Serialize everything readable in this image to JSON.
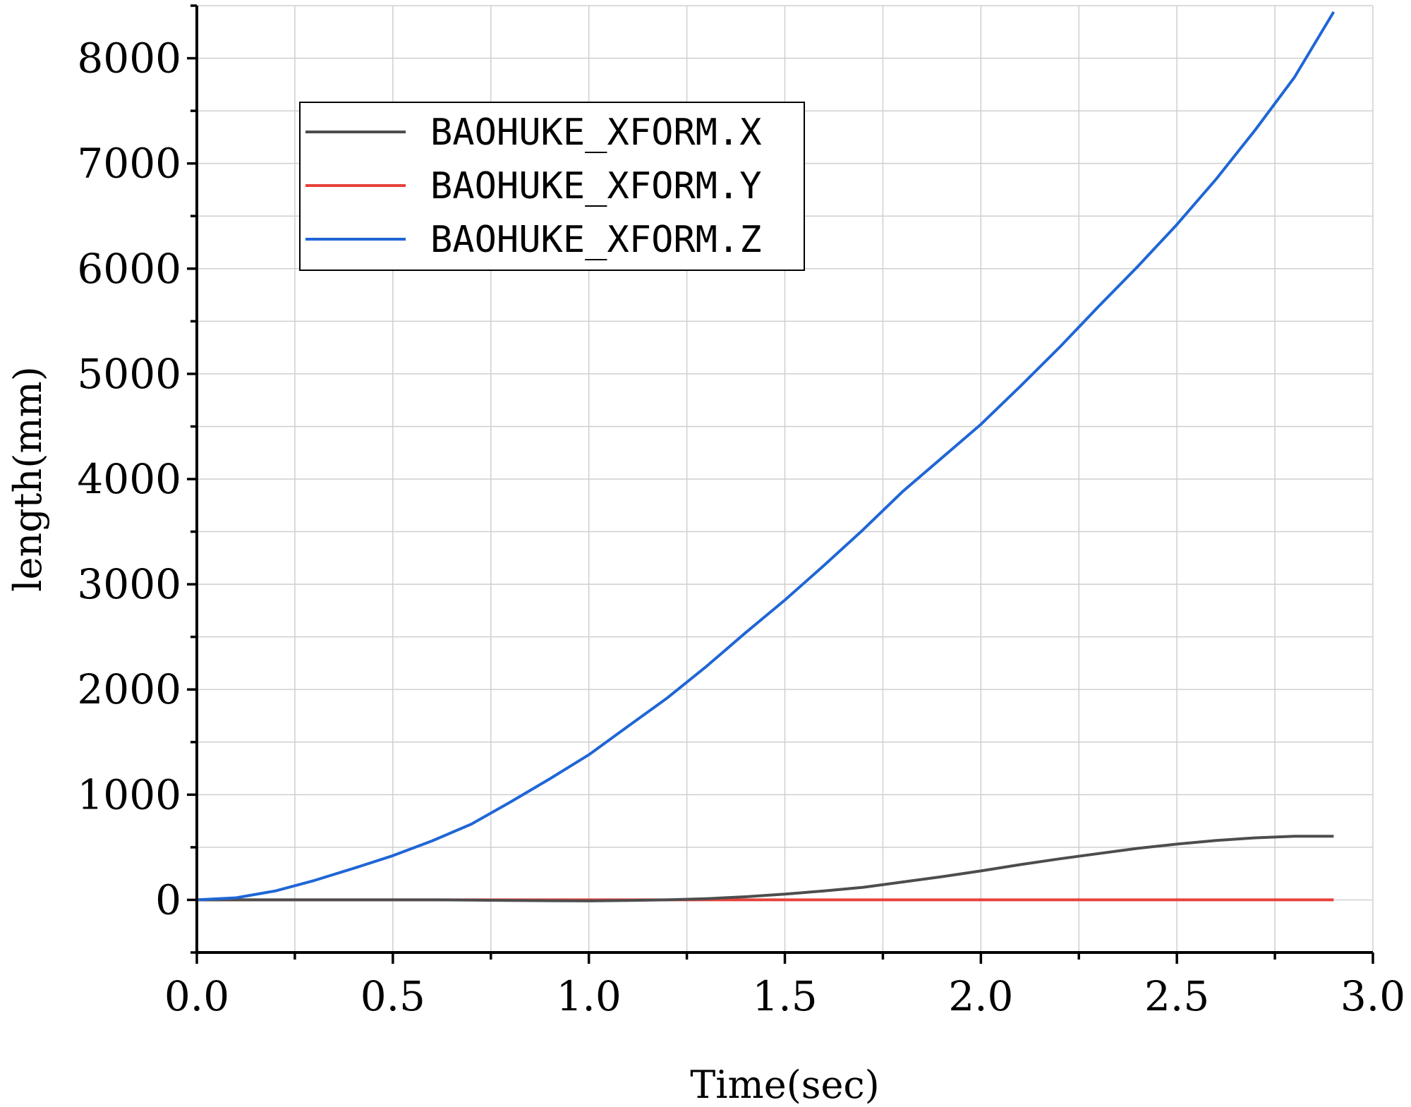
{
  "chart_data": {
    "type": "line",
    "title": "",
    "xlabel": "Time(sec)",
    "ylabel": "length(mm)",
    "xlim": [
      0.0,
      3.0
    ],
    "ylim": [
      -500,
      8500
    ],
    "x_ticks": [
      0.0,
      0.5,
      1.0,
      1.5,
      2.0,
      2.5,
      3.0
    ],
    "x_tick_labels": [
      "0.0",
      "0.5",
      "1.0",
      "1.5",
      "2.0",
      "2.5",
      "3.0"
    ],
    "y_ticks": [
      0,
      1000,
      2000,
      3000,
      4000,
      5000,
      6000,
      7000,
      8000
    ],
    "y_tick_labels": [
      "0",
      "1000",
      "2000",
      "3000",
      "4000",
      "5000",
      "6000",
      "7000",
      "8000"
    ],
    "grid": true,
    "legend_position": "top-left",
    "x": [
      0.0,
      0.1,
      0.2,
      0.3,
      0.4,
      0.5,
      0.6,
      0.7,
      0.8,
      0.9,
      1.0,
      1.1,
      1.2,
      1.3,
      1.4,
      1.5,
      1.6,
      1.7,
      1.8,
      1.9,
      2.0,
      2.1,
      2.2,
      2.3,
      2.4,
      2.5,
      2.6,
      2.7,
      2.8,
      2.9
    ],
    "series": [
      {
        "name": "BAOHUKE_XFORM.X",
        "color": "#4d4d4d",
        "values": [
          0,
          0,
          0,
          0,
          0,
          0,
          0,
          -2,
          -5,
          -8,
          -10,
          -6,
          0,
          12,
          30,
          55,
          85,
          120,
          170,
          220,
          275,
          335,
          390,
          440,
          490,
          530,
          565,
          590,
          605,
          605
        ]
      },
      {
        "name": "BAOHUKE_XFORM.Y",
        "color": "#e8413c",
        "values": [
          0,
          0,
          0,
          0,
          0,
          0,
          0,
          0,
          0,
          0,
          0,
          0,
          0,
          0,
          0,
          0,
          0,
          0,
          0,
          0,
          0,
          0,
          0,
          0,
          0,
          0,
          0,
          0,
          0,
          0
        ]
      },
      {
        "name": "BAOHUKE_XFORM.Z",
        "color": "#1f66d6",
        "values": [
          0,
          20,
          85,
          185,
          300,
          420,
          560,
          720,
          930,
          1150,
          1380,
          1650,
          1920,
          2220,
          2540,
          2850,
          3180,
          3520,
          3880,
          4200,
          4520,
          4880,
          5250,
          5640,
          6020,
          6420,
          6850,
          7320,
          7820,
          8440
        ]
      }
    ]
  }
}
